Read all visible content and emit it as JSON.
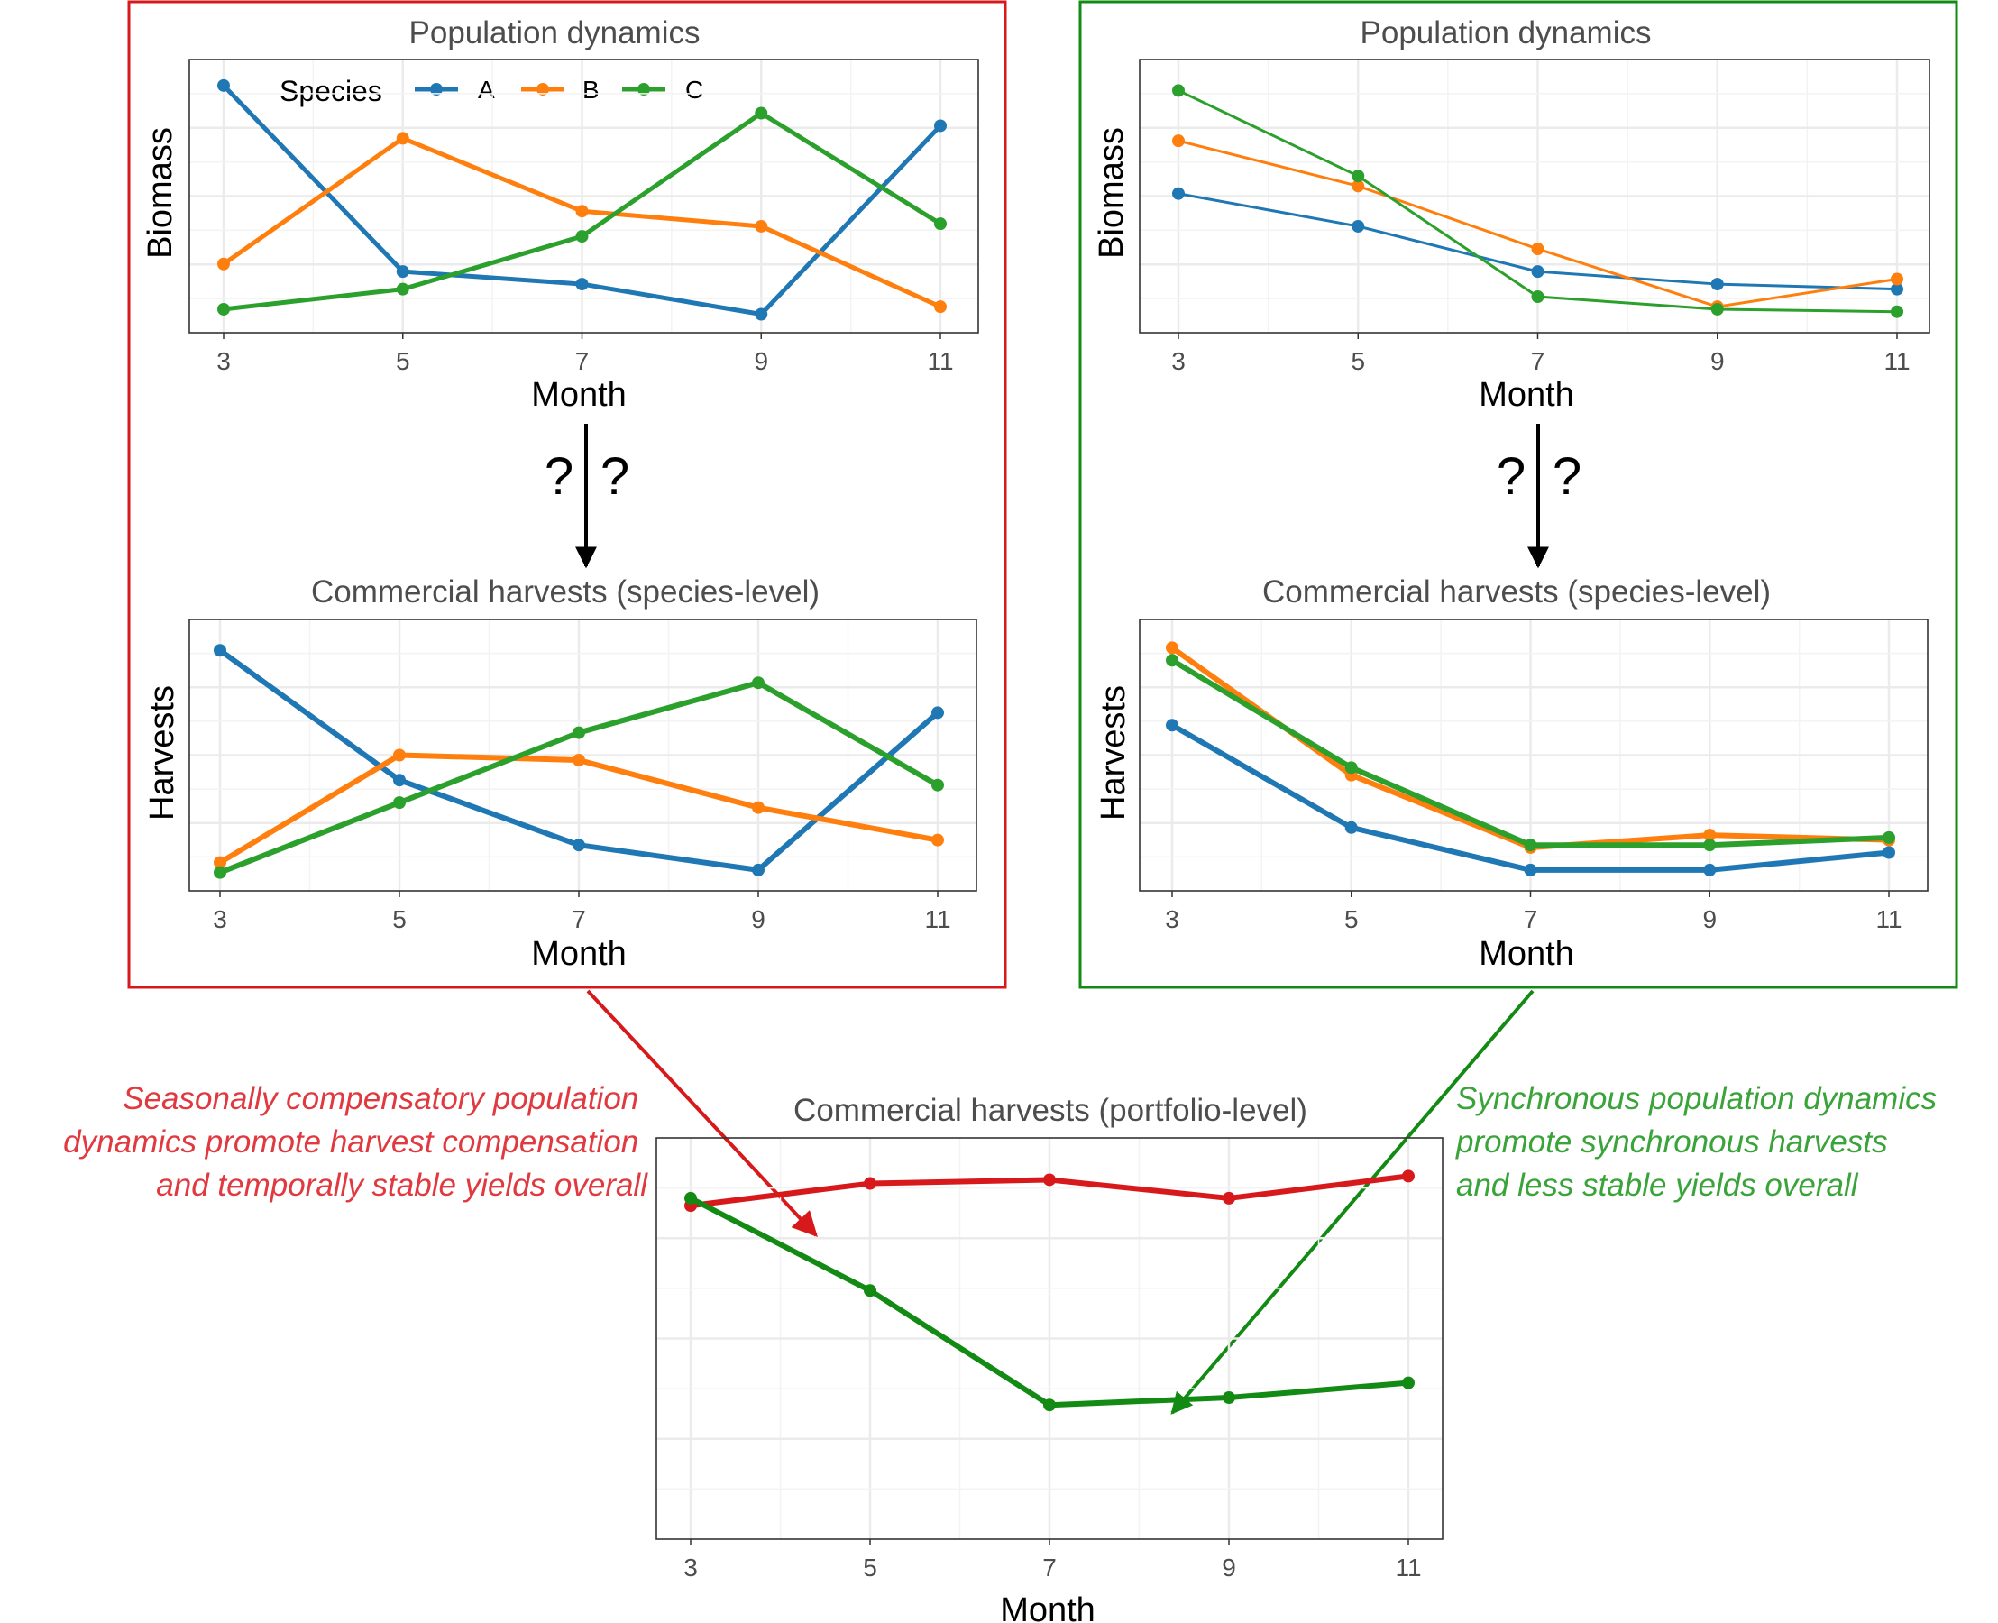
{
  "colors": {
    "species_A": "#1f77b4",
    "species_B": "#ff7f0e",
    "species_C": "#2ca02c",
    "compensatory": "#d7191c",
    "synchronous": "#138a13",
    "note_red": "#e0393f",
    "note_green": "#3aa33a"
  },
  "legend": {
    "title": "Species",
    "items": [
      "A",
      "B",
      "C"
    ]
  },
  "panels": {
    "left_population": {
      "title": "Population dynamics",
      "xlabel": "Month",
      "ylabel": "Biomass"
    },
    "left_harvest": {
      "title": "Commercial harvests (species-level)",
      "xlabel": "Month",
      "ylabel": "Harvests"
    },
    "right_population": {
      "title": "Population dynamics",
      "xlabel": "Month",
      "ylabel": "Biomass"
    },
    "right_harvest": {
      "title": "Commercial harvests (species-level)",
      "xlabel": "Month",
      "ylabel": "Harvests"
    },
    "portfolio": {
      "title": "Commercial harvests (portfolio-level)",
      "xlabel": "Month",
      "ylabel": ""
    }
  },
  "question_marks": [
    "?",
    "?"
  ],
  "notes": {
    "left": [
      "Seasonally compensatory population",
      "dynamics promote harvest compensation",
      "and temporally stable yields overall"
    ],
    "right": [
      "Synchronous population dynamics",
      "promote synchronous harvests",
      "and less stable yields overall"
    ]
  },
  "chart_data": [
    {
      "id": "left_population",
      "type": "line",
      "title": "Population dynamics",
      "xlabel": "Month",
      "ylabel": "Biomass",
      "x": [
        3,
        5,
        7,
        9,
        11
      ],
      "ylim": [
        0,
        100
      ],
      "series": [
        {
          "name": "A",
          "values": [
            94,
            20,
            15,
            3,
            78
          ]
        },
        {
          "name": "B",
          "values": [
            23,
            73,
            44,
            38,
            6
          ]
        },
        {
          "name": "C",
          "values": [
            5,
            13,
            34,
            83,
            39
          ]
        }
      ]
    },
    {
      "id": "left_harvest",
      "type": "line",
      "title": "Commercial harvests (species-level)",
      "xlabel": "Month",
      "ylabel": "Harvests",
      "x": [
        3,
        5,
        7,
        9,
        11
      ],
      "ylim": [
        0,
        100
      ],
      "series": [
        {
          "name": "A",
          "values": [
            92,
            40,
            14,
            4,
            67
          ]
        },
        {
          "name": "B",
          "values": [
            7,
            50,
            48,
            29,
            16
          ]
        },
        {
          "name": "C",
          "values": [
            3,
            31,
            59,
            79,
            38
          ]
        }
      ]
    },
    {
      "id": "right_population",
      "type": "line",
      "title": "Population dynamics",
      "xlabel": "Month",
      "ylabel": "Biomass",
      "x": [
        3,
        5,
        7,
        9,
        11
      ],
      "ylim": [
        0,
        100
      ],
      "series": [
        {
          "name": "A",
          "values": [
            51,
            38,
            20,
            15,
            13
          ]
        },
        {
          "name": "B",
          "values": [
            72,
            54,
            29,
            6,
            17
          ]
        },
        {
          "name": "C",
          "values": [
            92,
            58,
            10,
            5,
            4
          ]
        }
      ]
    },
    {
      "id": "right_harvest",
      "type": "line",
      "title": "Commercial harvests (species-level)",
      "xlabel": "Month",
      "ylabel": "Harvests",
      "x": [
        3,
        5,
        7,
        9,
        11
      ],
      "ylim": [
        0,
        100
      ],
      "series": [
        {
          "name": "A",
          "values": [
            62,
            21,
            4,
            4,
            11
          ]
        },
        {
          "name": "B",
          "values": [
            93,
            42,
            13,
            18,
            16
          ]
        },
        {
          "name": "C",
          "values": [
            88,
            45,
            14,
            14,
            17
          ]
        }
      ]
    },
    {
      "id": "portfolio",
      "type": "line",
      "title": "Commercial harvests (portfolio-level)",
      "xlabel": "Month",
      "ylabel": "",
      "x": [
        3,
        5,
        7,
        9,
        11
      ],
      "ylim": [
        0,
        100
      ],
      "series": [
        {
          "name": "",
          "values": [
            86,
            92,
            93,
            88,
            94
          ]
        },
        {
          "name": "",
          "values": [
            88,
            63,
            32,
            34,
            38
          ]
        }
      ]
    }
  ]
}
